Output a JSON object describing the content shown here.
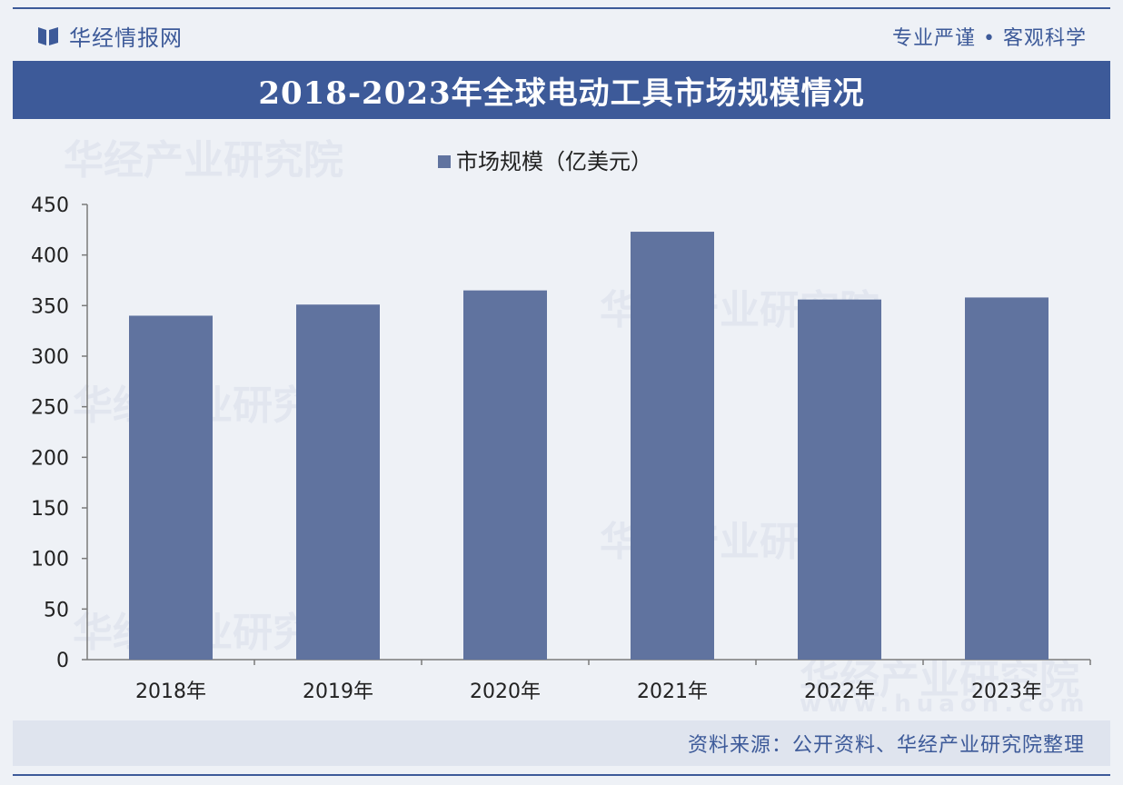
{
  "header": {
    "brand_name": "华经情报网",
    "slogan": "专业严谨 • 客观科学"
  },
  "watermark": {
    "text": "华经产业研究院",
    "url": "www.huaon.com"
  },
  "colors": {
    "accent": "#3d5a99",
    "bar": "#60739f",
    "axis": "#7a7a7a",
    "text": "#222222"
  },
  "source": {
    "text": "资料来源：公开资料、华经产业研究院整理"
  },
  "chart_data": {
    "type": "bar",
    "title": "2018-2023年全球电动工具市场规模情况",
    "categories": [
      "2018年",
      "2019年",
      "2020年",
      "2021年",
      "2022年",
      "2023年"
    ],
    "series": [
      {
        "name": "市场规模（亿美元）",
        "values": [
          340,
          351,
          365,
          423,
          356,
          358
        ]
      }
    ],
    "ylim": [
      0,
      450
    ],
    "yticks": [
      0,
      50,
      100,
      150,
      200,
      250,
      300,
      350,
      400,
      450
    ],
    "legend_position": "top-center",
    "grid": false,
    "xlabel": "",
    "ylabel": ""
  }
}
